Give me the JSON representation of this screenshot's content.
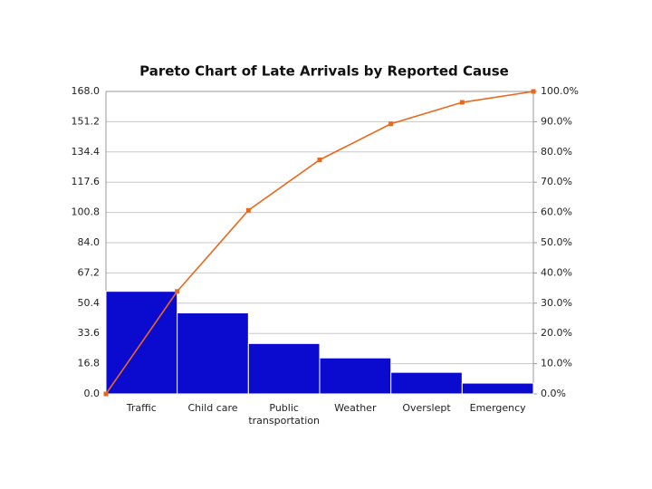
{
  "chart_data": {
    "type": "pareto",
    "title": "Pareto Chart of Late Arrivals by Reported Cause",
    "categories": [
      "Traffic",
      "Child care",
      "Public transportation",
      "Weather",
      "Overslept",
      "Emergency"
    ],
    "values": [
      57,
      45,
      28,
      20,
      12,
      6
    ],
    "color": "#0b0bd0",
    "cumulative": {
      "axis": "y2",
      "color": "#e8691e",
      "values": [
        0,
        33.9,
        60.7,
        77.4,
        89.3,
        96.4,
        100
      ]
    },
    "ylim": [
      0,
      168
    ],
    "yticks": [
      {
        "value": 0,
        "label": "0.0"
      },
      16.8,
      33.6,
      50.4,
      67.2,
      {
        "value": 84,
        "label": "84.0"
      },
      100.8,
      117.6,
      134.4,
      151.2,
      {
        "value": 168,
        "label": "168.0"
      }
    ],
    "y2lim": [
      0,
      100
    ],
    "y2ticks": [
      {
        "value": 0,
        "label": "0.0%"
      },
      {
        "value": 10,
        "label": "10.0%"
      },
      {
        "value": 20,
        "label": "20.0%"
      },
      {
        "value": 30,
        "label": "30.0%"
      },
      {
        "value": 40,
        "label": "40.0%"
      },
      {
        "value": 50,
        "label": "50.0%"
      },
      {
        "value": 60,
        "label": "60.0%"
      },
      {
        "value": 70,
        "label": "70.0%"
      },
      {
        "value": 80,
        "label": "80.0%"
      },
      {
        "value": 90,
        "label": "90.0%"
      },
      {
        "value": 100,
        "label": "100.0%"
      }
    ],
    "grid": true
  }
}
